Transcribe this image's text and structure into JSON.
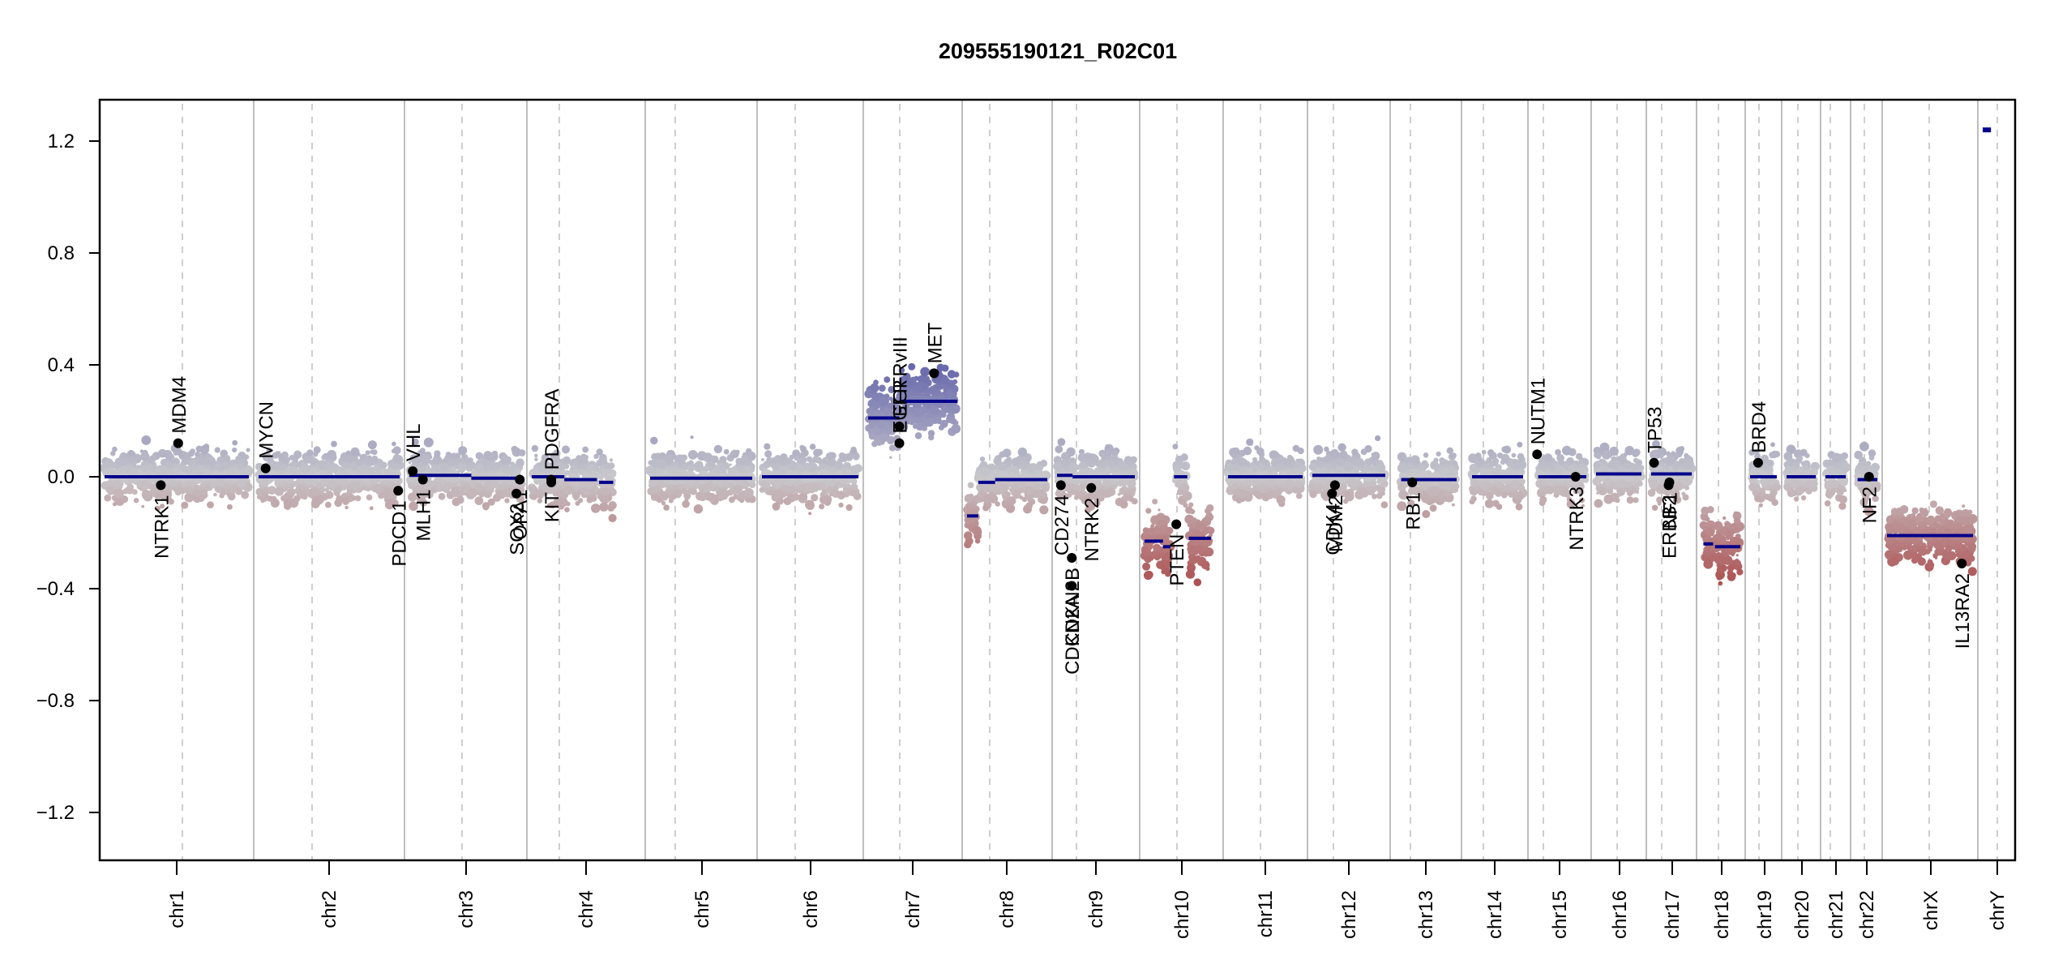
{
  "chart_data": {
    "type": "scatter",
    "title": "209555190121_R02C01",
    "xlabel": "",
    "ylabel": "",
    "ylim": [
      -1.35,
      1.35
    ],
    "yticks": [
      1.2,
      0.8,
      0.4,
      0.0,
      -0.4,
      -0.8,
      -1.2
    ],
    "ytick_labels": [
      "1.2",
      "0.8",
      "0.4",
      "0.0",
      "−0.4",
      "−0.8",
      "−1.2"
    ],
    "grid": "chromosome boundaries solid grey, centromeres dashed grey",
    "colors": {
      "gain": "#5a5aa8",
      "neutral": "#c8c8cc",
      "loss": "#a83a3a",
      "segment": "#00008b",
      "gene_dot": "#000000",
      "boundary": "#bebebe"
    },
    "chromosomes": [
      {
        "name": "chr1",
        "label": "chr1"
      },
      {
        "name": "chr2",
        "label": "chr2"
      },
      {
        "name": "chr3",
        "label": "chr3"
      },
      {
        "name": "chr4",
        "label": "chr4"
      },
      {
        "name": "chr5",
        "label": "chr5"
      },
      {
        "name": "chr6",
        "label": "chr6"
      },
      {
        "name": "chr7",
        "label": "chr7"
      },
      {
        "name": "chr8",
        "label": "chr8"
      },
      {
        "name": "chr9",
        "label": "chr9"
      },
      {
        "name": "chr10",
        "label": "chr10"
      },
      {
        "name": "chr11",
        "label": "chr11"
      },
      {
        "name": "chr12",
        "label": "chr12"
      },
      {
        "name": "chr13",
        "label": "chr13"
      },
      {
        "name": "chr14",
        "label": "chr14"
      },
      {
        "name": "chr15",
        "label": "chr15"
      },
      {
        "name": "chr16",
        "label": "chr16"
      },
      {
        "name": "chr17",
        "label": "chr17"
      },
      {
        "name": "chr18",
        "label": "chr18"
      },
      {
        "name": "chr19",
        "label": "chr19"
      },
      {
        "name": "chr20",
        "label": "chr20"
      },
      {
        "name": "chr21",
        "label": "chr21"
      },
      {
        "name": "chr22",
        "label": "chr22"
      },
      {
        "name": "chrX",
        "label": "chrX"
      },
      {
        "name": "chrY",
        "label": "chrY"
      }
    ],
    "segments": [
      {
        "chr": 0,
        "start": 0.0,
        "end": 1.0,
        "mean": 0.0,
        "spread": 0.07
      },
      {
        "chr": 1,
        "start": 0.0,
        "end": 1.0,
        "mean": 0.0,
        "spread": 0.07
      },
      {
        "chr": 2,
        "start": 0.0,
        "end": 0.55,
        "mean": 0.005,
        "spread": 0.07
      },
      {
        "chr": 2,
        "start": 0.55,
        "end": 1.0,
        "mean": -0.005,
        "spread": 0.07
      },
      {
        "chr": 3,
        "start": 0.0,
        "end": 0.3,
        "mean": 0.0,
        "spread": 0.07
      },
      {
        "chr": 3,
        "start": 0.3,
        "end": 0.6,
        "mean": -0.01,
        "spread": 0.07
      },
      {
        "chr": 3,
        "start": 0.62,
        "end": 0.75,
        "mean": -0.02,
        "spread": 0.07
      },
      {
        "chr": 4,
        "start": 0.0,
        "end": 1.0,
        "mean": -0.005,
        "spread": 0.07
      },
      {
        "chr": 5,
        "start": 0.0,
        "end": 1.0,
        "mean": 0.0,
        "spread": 0.07
      },
      {
        "chr": 6,
        "start": 0.0,
        "end": 0.35,
        "mean": 0.21,
        "spread": 0.09
      },
      {
        "chr": 6,
        "start": 0.35,
        "end": 1.0,
        "mean": 0.27,
        "spread": 0.09
      },
      {
        "chr": 7,
        "start": 0.0,
        "end": 0.14,
        "mean": -0.14,
        "spread": 0.09
      },
      {
        "chr": 7,
        "start": 0.14,
        "end": 0.35,
        "mean": -0.02,
        "spread": 0.07
      },
      {
        "chr": 7,
        "start": 0.35,
        "end": 1.0,
        "mean": -0.01,
        "spread": 0.07
      },
      {
        "chr": 8,
        "start": 0.0,
        "end": 0.2,
        "mean": 0.005,
        "spread": 0.07
      },
      {
        "chr": 8,
        "start": 0.2,
        "end": 1.0,
        "mean": 0.0,
        "spread": 0.07
      },
      {
        "chr": 9,
        "start": 0.0,
        "end": 0.25,
        "mean": -0.23,
        "spread": 0.09
      },
      {
        "chr": 9,
        "start": 0.25,
        "end": 0.35,
        "mean": -0.25,
        "spread": 0.09
      },
      {
        "chr": 9,
        "start": 0.4,
        "end": 0.58,
        "mean": 0.0,
        "spread": 0.07
      },
      {
        "chr": 9,
        "start": 0.6,
        "end": 0.9,
        "mean": -0.22,
        "spread": 0.09
      },
      {
        "chr": 10,
        "start": 0.0,
        "end": 1.0,
        "mean": 0.0,
        "spread": 0.07
      },
      {
        "chr": 11,
        "start": 0.0,
        "end": 1.0,
        "mean": 0.005,
        "spread": 0.07
      },
      {
        "chr": 12,
        "start": 0.1,
        "end": 1.0,
        "mean": -0.01,
        "spread": 0.07
      },
      {
        "chr": 13,
        "start": 0.1,
        "end": 1.0,
        "mean": 0.0,
        "spread": 0.07
      },
      {
        "chr": 14,
        "start": 0.1,
        "end": 1.0,
        "mean": 0.0,
        "spread": 0.07
      },
      {
        "chr": 15,
        "start": 0.0,
        "end": 1.0,
        "mean": 0.01,
        "spread": 0.07
      },
      {
        "chr": 16,
        "start": 0.0,
        "end": 1.0,
        "mean": 0.01,
        "spread": 0.07
      },
      {
        "chr": 17,
        "start": 0.05,
        "end": 0.3,
        "mean": -0.24,
        "spread": 0.1
      },
      {
        "chr": 17,
        "start": 0.35,
        "end": 1.0,
        "mean": -0.25,
        "spread": 0.1
      },
      {
        "chr": 18,
        "start": 0.0,
        "end": 1.0,
        "mean": 0.0,
        "spread": 0.07
      },
      {
        "chr": 19,
        "start": 0.0,
        "end": 1.0,
        "mean": 0.0,
        "spread": 0.07
      },
      {
        "chr": 20,
        "start": 0.0,
        "end": 1.0,
        "mean": 0.0,
        "spread": 0.07
      },
      {
        "chr": 21,
        "start": 0.1,
        "end": 1.0,
        "mean": -0.01,
        "spread": 0.07
      },
      {
        "chr": 22,
        "start": 0.0,
        "end": 1.0,
        "mean": -0.21,
        "spread": 0.08
      },
      {
        "chr": 23,
        "start": 0.0,
        "end": 0.3,
        "mean": 1.24,
        "spread": 0.0
      }
    ],
    "genes": [
      {
        "name": "NTRK1",
        "chr": 0,
        "pos": 0.39,
        "value": -0.03,
        "label_side": "below"
      },
      {
        "name": "MDM4",
        "chr": 0,
        "pos": 0.51,
        "value": 0.12,
        "label_side": "above"
      },
      {
        "name": "MYCN",
        "chr": 1,
        "pos": 0.05,
        "value": 0.03,
        "label_side": "above"
      },
      {
        "name": "PDCD1",
        "chr": 1,
        "pos": 0.99,
        "value": -0.05,
        "label_side": "below"
      },
      {
        "name": "VHL",
        "chr": 2,
        "pos": 0.03,
        "value": 0.02,
        "label_side": "above"
      },
      {
        "name": "MLH1",
        "chr": 2,
        "pos": 0.12,
        "value": -0.01,
        "label_side": "below"
      },
      {
        "name": "SOX2",
        "chr": 2,
        "pos": 0.95,
        "value": -0.06,
        "label_side": "below"
      },
      {
        "name": "OPA1",
        "chr": 2,
        "pos": 0.98,
        "value": -0.01,
        "label_side": "below"
      },
      {
        "name": "PDGFRA",
        "chr": 3,
        "pos": 0.18,
        "value": -0.01,
        "label_side": "above"
      },
      {
        "name": "KIT",
        "chr": 3,
        "pos": 0.18,
        "value": -0.02,
        "label_side": "below"
      },
      {
        "name": "EGFR",
        "chr": 6,
        "pos": 0.35,
        "value": 0.12,
        "label_side": "above"
      },
      {
        "name": "EGFRvIII",
        "chr": 6,
        "pos": 0.35,
        "value": 0.18,
        "label_side": "above"
      },
      {
        "name": "MET",
        "chr": 6,
        "pos": 0.74,
        "value": 0.37,
        "label_side": "above"
      },
      {
        "name": "CD274",
        "chr": 8,
        "pos": 0.05,
        "value": -0.03,
        "label_side": "below"
      },
      {
        "name": "CDKN2A",
        "chr": 8,
        "pos": 0.19,
        "value": -0.39,
        "label_side": "below"
      },
      {
        "name": "CDKN2B",
        "chr": 8,
        "pos": 0.19,
        "value": -0.29,
        "label_side": "below"
      },
      {
        "name": "NTRK2",
        "chr": 8,
        "pos": 0.44,
        "value": -0.04,
        "label_side": "below"
      },
      {
        "name": "PTEN",
        "chr": 9,
        "pos": 0.43,
        "value": -0.17,
        "label_side": "below"
      },
      {
        "name": "CDK4",
        "chr": 11,
        "pos": 0.27,
        "value": -0.06,
        "label_side": "below"
      },
      {
        "name": "MDM2",
        "chr": 11,
        "pos": 0.31,
        "value": -0.03,
        "label_side": "below"
      },
      {
        "name": "RB1",
        "chr": 12,
        "pos": 0.28,
        "value": -0.02,
        "label_side": "below"
      },
      {
        "name": "NUTM1",
        "chr": 14,
        "pos": 0.08,
        "value": 0.08,
        "label_side": "above"
      },
      {
        "name": "NTRK3",
        "chr": 14,
        "pos": 0.8,
        "value": -0.0,
        "label_side": "below"
      },
      {
        "name": "TP53",
        "chr": 16,
        "pos": 0.07,
        "value": 0.05,
        "label_side": "above"
      },
      {
        "name": "NF1",
        "chr": 16,
        "pos": 0.45,
        "value": -0.02,
        "label_side": "below"
      },
      {
        "name": "ERBB2",
        "chr": 16,
        "pos": 0.43,
        "value": -0.03,
        "label_side": "below"
      },
      {
        "name": "BRD4",
        "chr": 18,
        "pos": 0.3,
        "value": 0.05,
        "label_side": "above"
      },
      {
        "name": "NF2",
        "chr": 21,
        "pos": 0.62,
        "value": -0.0,
        "label_side": "below"
      },
      {
        "name": "IL13RA2",
        "chr": 22,
        "pos": 0.87,
        "value": -0.31,
        "label_side": "below"
      }
    ]
  }
}
